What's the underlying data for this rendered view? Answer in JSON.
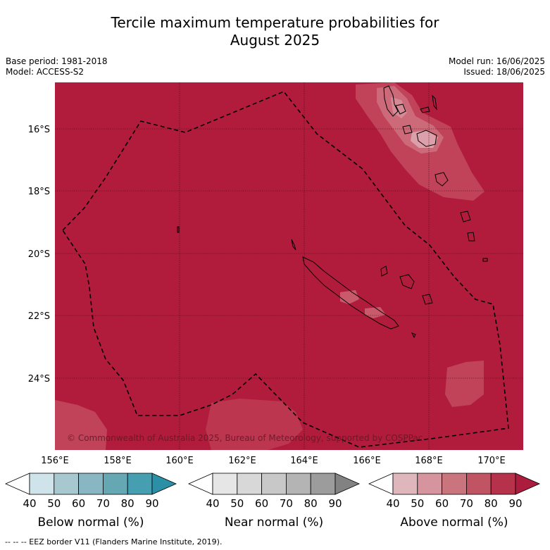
{
  "title": {
    "line1": "Tercile maximum temperature probabilities for",
    "line2": "August 2025"
  },
  "meta": {
    "base_period": "Base period: 1981-2018",
    "model": "Model: ACCESS-S2",
    "model_run": "Model run: 16/06/2025",
    "issued": "Issued: 18/06/2025"
  },
  "map": {
    "lon_ticks": [
      "156°E",
      "158°E",
      "160°E",
      "162°E",
      "164°E",
      "166°E",
      "168°E",
      "170°E"
    ],
    "lat_ticks": [
      "16°S",
      "18°S",
      "20°S",
      "22°S",
      "24°S"
    ],
    "copyright": "© Commonwealth of Australia 2025, Bureau of Meteorology, supported by COSPPac",
    "dominant_category": "Above normal",
    "dominant_color": "#b21c3c"
  },
  "colorbars": [
    {
      "title": "Below normal (%)",
      "ticks": [
        "40",
        "50",
        "60",
        "70",
        "80",
        "90"
      ],
      "colors": [
        "#ffffff",
        "#cfe4ea",
        "#a8c8cf",
        "#88b6c2",
        "#66a7b4",
        "#459fb0",
        "#2b8fa6"
      ]
    },
    {
      "title": "Near normal (%)",
      "ticks": [
        "40",
        "50",
        "60",
        "70",
        "80",
        "90"
      ],
      "colors": [
        "#ffffff",
        "#e6e6e6",
        "#d8d8d8",
        "#c8c8c8",
        "#b4b4b4",
        "#9c9c9c",
        "#828282"
      ]
    },
    {
      "title": "Above normal (%)",
      "ticks": [
        "40",
        "50",
        "60",
        "70",
        "80",
        "90"
      ],
      "colors": [
        "#ffffff",
        "#e0b6bd",
        "#d6949e",
        "#ca747e",
        "#c05462",
        "#b6324a",
        "#ac1c3c"
      ]
    }
  ],
  "footnote": "--  --  -- EEZ border V11 (Flanders Marine Institute, 2019)."
}
